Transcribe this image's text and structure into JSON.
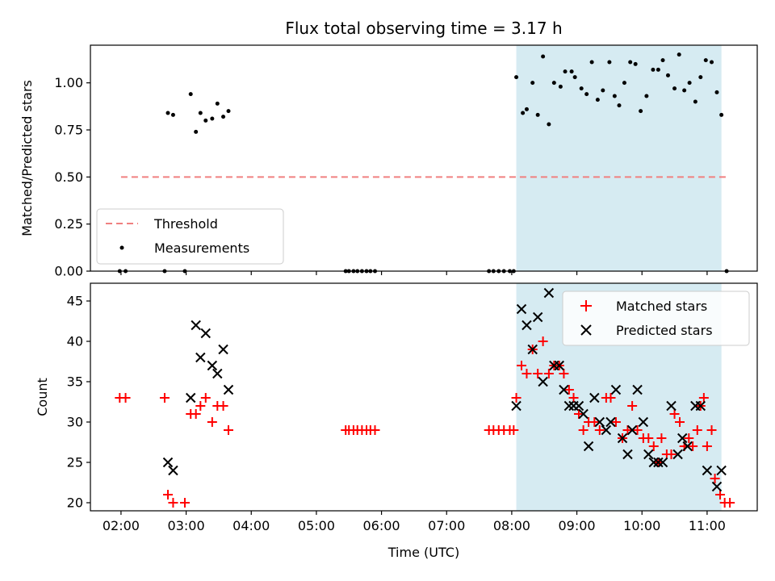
{
  "chart_data": {
    "type": "scatter",
    "title": "Flux total observing time = 3.17 h",
    "xlabel": "Time (UTC)",
    "x_ticks": [
      "02:00",
      "03:00",
      "04:00",
      "05:00",
      "06:00",
      "07:00",
      "08:00",
      "09:00",
      "10:00",
      "11:00"
    ],
    "x_tick_hours": [
      2,
      3,
      4,
      5,
      6,
      7,
      8,
      9,
      10,
      11
    ],
    "xlim": [
      1.53,
      11.77
    ],
    "shaded_span": [
      8.07,
      11.22
    ],
    "top": {
      "ylabel": "Matched/Predicted stars",
      "ylim": [
        0,
        1.2
      ],
      "y_ticks": [
        "0.00",
        "0.25",
        "0.50",
        "0.75",
        "1.00"
      ],
      "y_tick_values": [
        0,
        0.25,
        0.5,
        0.75,
        1.0
      ],
      "threshold": {
        "name": "Threshold",
        "value": 0.5,
        "x_range": [
          2.0,
          11.33
        ],
        "color": "#f08080"
      },
      "measurements_name": "Measurements",
      "measurements": [
        [
          1.98,
          0
        ],
        [
          2.07,
          0
        ],
        [
          2.67,
          0
        ],
        [
          2.98,
          0
        ],
        [
          2.72,
          0.84
        ],
        [
          2.8,
          0.83
        ],
        [
          3.07,
          0.94
        ],
        [
          3.15,
          0.74
        ],
        [
          3.22,
          0.84
        ],
        [
          3.3,
          0.8
        ],
        [
          3.4,
          0.81
        ],
        [
          3.48,
          0.89
        ],
        [
          3.57,
          0.82
        ],
        [
          3.65,
          0.85
        ],
        [
          5.45,
          0
        ],
        [
          5.5,
          0
        ],
        [
          5.57,
          0
        ],
        [
          5.63,
          0
        ],
        [
          5.7,
          0
        ],
        [
          5.77,
          0
        ],
        [
          5.83,
          0
        ],
        [
          5.9,
          0
        ],
        [
          7.65,
          0
        ],
        [
          7.72,
          0
        ],
        [
          7.8,
          0
        ],
        [
          7.88,
          0
        ],
        [
          7.97,
          0
        ],
        [
          8.03,
          0
        ],
        [
          8.07,
          1.03
        ],
        [
          8.17,
          0.84
        ],
        [
          8.23,
          0.86
        ],
        [
          8.32,
          1.0
        ],
        [
          8.4,
          0.83
        ],
        [
          8.48,
          1.14
        ],
        [
          8.57,
          0.78
        ],
        [
          8.65,
          1.0
        ],
        [
          8.75,
          0.98
        ],
        [
          8.82,
          1.06
        ],
        [
          8.92,
          1.06
        ],
        [
          8.97,
          1.03
        ],
        [
          9.07,
          0.97
        ],
        [
          9.15,
          0.94
        ],
        [
          9.23,
          1.11
        ],
        [
          9.32,
          0.91
        ],
        [
          9.4,
          0.96
        ],
        [
          9.5,
          1.11
        ],
        [
          9.58,
          0.93
        ],
        [
          9.65,
          0.88
        ],
        [
          9.73,
          1.0
        ],
        [
          9.82,
          1.11
        ],
        [
          9.9,
          1.1
        ],
        [
          9.98,
          0.85
        ],
        [
          10.07,
          0.93
        ],
        [
          10.17,
          1.07
        ],
        [
          10.25,
          1.07
        ],
        [
          10.32,
          1.12
        ],
        [
          10.4,
          1.04
        ],
        [
          10.5,
          0.97
        ],
        [
          10.57,
          1.15
        ],
        [
          10.65,
          0.96
        ],
        [
          10.73,
          1.0
        ],
        [
          10.82,
          0.9
        ],
        [
          10.9,
          1.03
        ],
        [
          10.98,
          1.12
        ],
        [
          11.07,
          1.11
        ],
        [
          11.15,
          0.95
        ],
        [
          11.22,
          0.83
        ],
        [
          11.3,
          0
        ]
      ]
    },
    "bottom": {
      "ylabel": "Count",
      "ylim": [
        19,
        47.2
      ],
      "y_ticks": [
        "20",
        "25",
        "30",
        "35",
        "40",
        "45"
      ],
      "y_tick_values": [
        20,
        25,
        30,
        35,
        40,
        45
      ],
      "series": [
        {
          "name": "Matched stars",
          "marker": "+",
          "color": "#ff0000",
          "points": [
            [
              1.98,
              33
            ],
            [
              2.07,
              33
            ],
            [
              2.67,
              33
            ],
            [
              2.72,
              21
            ],
            [
              2.8,
              20
            ],
            [
              2.98,
              20
            ],
            [
              3.07,
              31
            ],
            [
              3.15,
              31
            ],
            [
              3.22,
              32
            ],
            [
              3.3,
              33
            ],
            [
              3.4,
              30
            ],
            [
              3.48,
              32
            ],
            [
              3.57,
              32
            ],
            [
              3.65,
              29
            ],
            [
              5.45,
              29
            ],
            [
              5.5,
              29
            ],
            [
              5.57,
              29
            ],
            [
              5.63,
              29
            ],
            [
              5.7,
              29
            ],
            [
              5.77,
              29
            ],
            [
              5.83,
              29
            ],
            [
              5.9,
              29
            ],
            [
              7.65,
              29
            ],
            [
              7.72,
              29
            ],
            [
              7.8,
              29
            ],
            [
              7.88,
              29
            ],
            [
              7.97,
              29
            ],
            [
              8.03,
              29
            ],
            [
              8.07,
              33
            ],
            [
              8.15,
              37
            ],
            [
              8.23,
              36
            ],
            [
              8.32,
              39
            ],
            [
              8.4,
              36
            ],
            [
              8.48,
              40
            ],
            [
              8.57,
              36
            ],
            [
              8.65,
              37
            ],
            [
              8.73,
              37
            ],
            [
              8.8,
              36
            ],
            [
              8.88,
              34
            ],
            [
              8.95,
              33
            ],
            [
              9.03,
              31
            ],
            [
              9.1,
              29
            ],
            [
              9.18,
              30
            ],
            [
              9.27,
              30
            ],
            [
              9.35,
              29
            ],
            [
              9.45,
              33
            ],
            [
              9.52,
              33
            ],
            [
              9.6,
              30
            ],
            [
              9.7,
              28
            ],
            [
              9.78,
              29
            ],
            [
              9.85,
              32
            ],
            [
              9.93,
              29
            ],
            [
              10.02,
              28
            ],
            [
              10.1,
              28
            ],
            [
              10.18,
              27
            ],
            [
              10.25,
              25
            ],
            [
              10.3,
              28
            ],
            [
              10.38,
              26
            ],
            [
              10.45,
              26
            ],
            [
              10.5,
              31
            ],
            [
              10.58,
              30
            ],
            [
              10.65,
              27
            ],
            [
              10.72,
              28
            ],
            [
              10.78,
              27
            ],
            [
              10.85,
              29
            ],
            [
              10.9,
              32
            ],
            [
              10.95,
              33
            ],
            [
              11.0,
              27
            ],
            [
              11.07,
              29
            ],
            [
              11.12,
              23
            ],
            [
              11.2,
              21
            ],
            [
              11.27,
              20
            ],
            [
              11.35,
              20
            ]
          ]
        },
        {
          "name": "Predicted stars",
          "marker": "x",
          "color": "#000000",
          "points": [
            [
              2.72,
              25
            ],
            [
              2.8,
              24
            ],
            [
              3.07,
              33
            ],
            [
              3.15,
              42
            ],
            [
              3.22,
              38
            ],
            [
              3.3,
              41
            ],
            [
              3.4,
              37
            ],
            [
              3.48,
              36
            ],
            [
              3.57,
              39
            ],
            [
              3.65,
              34
            ],
            [
              8.07,
              32
            ],
            [
              8.15,
              44
            ],
            [
              8.23,
              42
            ],
            [
              8.32,
              39
            ],
            [
              8.4,
              43
            ],
            [
              8.48,
              35
            ],
            [
              8.57,
              46
            ],
            [
              8.65,
              37
            ],
            [
              8.73,
              37
            ],
            [
              8.8,
              34
            ],
            [
              8.88,
              32
            ],
            [
              8.95,
              32
            ],
            [
              9.03,
              32
            ],
            [
              9.1,
              31
            ],
            [
              9.18,
              27
            ],
            [
              9.27,
              33
            ],
            [
              9.35,
              30
            ],
            [
              9.45,
              29
            ],
            [
              9.52,
              30
            ],
            [
              9.6,
              34
            ],
            [
              9.7,
              28
            ],
            [
              9.78,
              26
            ],
            [
              9.85,
              29
            ],
            [
              9.93,
              34
            ],
            [
              10.02,
              30
            ],
            [
              10.1,
              26
            ],
            [
              10.18,
              25
            ],
            [
              10.25,
              25
            ],
            [
              10.32,
              25
            ],
            [
              10.45,
              32
            ],
            [
              10.55,
              26
            ],
            [
              10.62,
              28
            ],
            [
              10.7,
              27
            ],
            [
              10.82,
              32
            ],
            [
              10.9,
              32
            ],
            [
              11.0,
              24
            ],
            [
              11.15,
              22
            ],
            [
              11.22,
              24
            ]
          ]
        }
      ]
    }
  }
}
